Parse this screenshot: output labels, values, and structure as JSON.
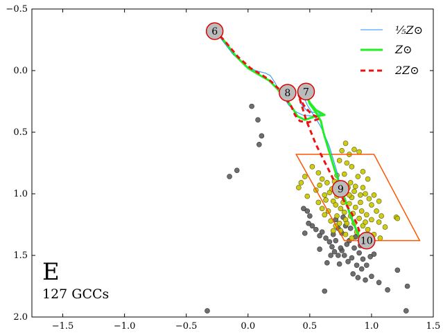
{
  "chart_data": {
    "type": "scatter",
    "panel_label": "E",
    "count_label": "127 GCCs",
    "xlim": [
      -1.75,
      1.5
    ],
    "ylim": [
      2.0,
      -0.5
    ],
    "x_ticks": [
      -1.5,
      -1.0,
      -0.5,
      0.0,
      0.5,
      1.0,
      1.5
    ],
    "y_ticks": [
      -0.5,
      0.0,
      0.5,
      1.0,
      1.5,
      2.0
    ],
    "x_tick_labels": [
      "−1.5",
      "−1.0",
      "−0.5",
      "0.0",
      "0.5",
      "1.0",
      "1.5"
    ],
    "y_tick_labels": [
      "−0.5",
      "0.0",
      "0.5",
      "1.0",
      "1.5",
      "2.0"
    ],
    "colors": {
      "track_low": "#1e90ff",
      "track_solar": "#22ee22",
      "track_high": "#ee1111",
      "box": "#ff5500",
      "gray_points": "#555555",
      "yellow_points": "#c8c800",
      "marker_fill": "#bbbbbb",
      "marker_edge": "#dd0000"
    },
    "legend": {
      "position": "top-right",
      "entries": [
        {
          "label": "⅕Z⊙",
          "style": "thin-blue"
        },
        {
          "label": "Z⊙",
          "style": "thick-green"
        },
        {
          "label": "2Z⊙",
          "style": "dashed-red"
        }
      ]
    },
    "series": [
      {
        "name": "1/5 Zsun",
        "points": [
          [
            -0.27,
            -0.33
          ],
          [
            -0.22,
            -0.26
          ],
          [
            -0.12,
            -0.13
          ],
          [
            -0.02,
            -0.04
          ],
          [
            0.06,
            0.0
          ],
          [
            0.14,
            0.02
          ],
          [
            0.18,
            0.04
          ],
          [
            0.22,
            0.1
          ],
          [
            0.25,
            0.16
          ],
          [
            0.29,
            0.22
          ],
          [
            0.33,
            0.28
          ],
          [
            0.38,
            0.33
          ],
          [
            0.44,
            0.36
          ],
          [
            0.52,
            0.37
          ],
          [
            0.6,
            0.35
          ],
          [
            0.48,
            0.33
          ],
          [
            0.42,
            0.26
          ],
          [
            0.44,
            0.19
          ],
          [
            0.48,
            0.28
          ],
          [
            0.53,
            0.36
          ],
          [
            0.58,
            0.44
          ],
          [
            0.62,
            0.52
          ],
          [
            0.66,
            0.62
          ],
          [
            0.69,
            0.72
          ],
          [
            0.72,
            0.82
          ],
          [
            0.74,
            0.9
          ],
          [
            0.76,
            0.97
          ],
          [
            0.79,
            1.05
          ],
          [
            0.82,
            1.13
          ],
          [
            0.85,
            1.21
          ],
          [
            0.88,
            1.29
          ],
          [
            0.91,
            1.37
          ],
          [
            0.95,
            1.44
          ]
        ]
      },
      {
        "name": "Zsun",
        "points": [
          [
            -0.27,
            -0.33
          ],
          [
            -0.2,
            -0.25
          ],
          [
            -0.1,
            -0.12
          ],
          [
            0.0,
            -0.02
          ],
          [
            0.1,
            0.04
          ],
          [
            0.17,
            0.08
          ],
          [
            0.23,
            0.14
          ],
          [
            0.28,
            0.2
          ],
          [
            0.33,
            0.26
          ],
          [
            0.37,
            0.32
          ],
          [
            0.4,
            0.37
          ],
          [
            0.46,
            0.4
          ],
          [
            0.55,
            0.37
          ],
          [
            0.62,
            0.36
          ],
          [
            0.55,
            0.32
          ],
          [
            0.5,
            0.26
          ],
          [
            0.47,
            0.19
          ],
          [
            0.5,
            0.27
          ],
          [
            0.55,
            0.34
          ],
          [
            0.59,
            0.41
          ],
          [
            0.61,
            0.5
          ],
          [
            0.64,
            0.6
          ],
          [
            0.67,
            0.7
          ],
          [
            0.7,
            0.8
          ],
          [
            0.73,
            0.89
          ],
          [
            0.76,
            0.97
          ],
          [
            0.79,
            1.06
          ],
          [
            0.82,
            1.15
          ],
          [
            0.85,
            1.23
          ],
          [
            0.88,
            1.3
          ],
          [
            0.91,
            1.37
          ],
          [
            0.95,
            1.44
          ]
        ]
      },
      {
        "name": "2 Zsun",
        "points": [
          [
            -0.27,
            -0.33
          ],
          [
            -0.18,
            -0.23
          ],
          [
            -0.08,
            -0.11
          ],
          [
            0.02,
            -0.02
          ],
          [
            0.12,
            0.04
          ],
          [
            0.19,
            0.09
          ],
          [
            0.26,
            0.16
          ],
          [
            0.31,
            0.23
          ],
          [
            0.35,
            0.29
          ],
          [
            0.38,
            0.36
          ],
          [
            0.42,
            0.41
          ],
          [
            0.49,
            0.42
          ],
          [
            0.58,
            0.39
          ],
          [
            0.51,
            0.35
          ],
          [
            0.45,
            0.28
          ],
          [
            0.41,
            0.2
          ],
          [
            0.44,
            0.3
          ],
          [
            0.47,
            0.4
          ],
          [
            0.51,
            0.5
          ],
          [
            0.55,
            0.6
          ],
          [
            0.6,
            0.7
          ],
          [
            0.65,
            0.8
          ],
          [
            0.7,
            0.9
          ],
          [
            0.74,
            0.99
          ],
          [
            0.79,
            1.08
          ],
          [
            0.84,
            1.16
          ],
          [
            0.88,
            1.24
          ],
          [
            0.9,
            1.3
          ],
          [
            0.91,
            1.36
          ],
          [
            0.92,
            1.38
          ]
        ]
      }
    ],
    "box_polygon": [
      [
        0.39,
        0.68
      ],
      [
        1.02,
        0.68
      ],
      [
        1.39,
        1.38
      ],
      [
        0.78,
        1.38
      ]
    ],
    "age_markers": [
      {
        "label": "6",
        "x": -0.27,
        "y": -0.32
      },
      {
        "label": "8",
        "x": 0.32,
        "y": 0.18
      },
      {
        "label": "7",
        "x": 0.47,
        "y": 0.17
      },
      {
        "label": "9",
        "x": 0.75,
        "y": 0.96
      },
      {
        "label": "10",
        "x": 0.96,
        "y": 1.38
      }
    ],
    "gray_points": [
      [
        0.03,
        0.29
      ],
      [
        0.08,
        0.4
      ],
      [
        0.11,
        0.53
      ],
      [
        0.09,
        0.6
      ],
      [
        -0.09,
        0.81
      ],
      [
        -0.15,
        0.86
      ],
      [
        -0.33,
        1.95
      ],
      [
        0.45,
        1.12
      ],
      [
        0.48,
        1.14
      ],
      [
        0.5,
        1.18
      ],
      [
        0.52,
        1.26
      ],
      [
        0.55,
        1.29
      ],
      [
        0.49,
        1.24
      ],
      [
        0.46,
        1.32
      ],
      [
        0.58,
        1.34
      ],
      [
        0.6,
        1.31
      ],
      [
        0.63,
        1.36
      ],
      [
        0.66,
        1.39
      ],
      [
        0.68,
        1.43
      ],
      [
        0.7,
        1.47
      ],
      [
        0.73,
        1.5
      ],
      [
        0.76,
        1.46
      ],
      [
        0.78,
        1.5
      ],
      [
        0.81,
        1.55
      ],
      [
        0.84,
        1.52
      ],
      [
        0.88,
        1.58
      ],
      [
        0.92,
        1.61
      ],
      [
        0.85,
        1.65
      ],
      [
        0.89,
        1.68
      ],
      [
        0.95,
        1.7
      ],
      [
        1.0,
        1.67
      ],
      [
        1.06,
        1.72
      ],
      [
        1.13,
        1.78
      ],
      [
        1.21,
        1.62
      ],
      [
        1.29,
        1.75
      ],
      [
        1.28,
        1.95
      ],
      [
        0.62,
        1.79
      ],
      [
        0.74,
        1.57
      ],
      [
        0.71,
        1.38
      ],
      [
        0.69,
        1.33
      ],
      [
        0.8,
        1.41
      ],
      [
        0.86,
        1.44
      ],
      [
        0.9,
        1.48
      ],
      [
        0.93,
        1.53
      ],
      [
        0.96,
        1.58
      ],
      [
        0.99,
        1.51
      ],
      [
        1.02,
        1.49
      ],
      [
        0.58,
        1.45
      ],
      [
        0.64,
        1.56
      ],
      [
        0.67,
        1.5
      ],
      [
        0.75,
        1.44
      ],
      [
        0.82,
        1.38
      ],
      [
        0.87,
        1.35
      ],
      [
        0.91,
        1.42
      ],
      [
        0.76,
        1.32
      ],
      [
        0.79,
        1.26
      ],
      [
        0.83,
        1.28
      ],
      [
        0.73,
        1.28
      ],
      [
        0.71,
        1.21
      ],
      [
        0.77,
        1.19
      ]
    ],
    "yellow_points": [
      [
        0.79,
        0.59
      ],
      [
        0.82,
        0.68
      ],
      [
        0.86,
        0.64
      ],
      [
        0.9,
        0.66
      ],
      [
        0.76,
        0.65
      ],
      [
        0.74,
        0.73
      ],
      [
        0.8,
        0.75
      ],
      [
        0.84,
        0.78
      ],
      [
        0.93,
        0.82
      ],
      [
        0.89,
        0.86
      ],
      [
        0.97,
        0.88
      ],
      [
        0.83,
        0.91
      ],
      [
        0.81,
        0.95
      ],
      [
        0.86,
        0.98
      ],
      [
        0.91,
        1.01
      ],
      [
        0.95,
        1.0
      ],
      [
        0.98,
        1.04
      ],
      [
        1.02,
        1.01
      ],
      [
        1.06,
        1.06
      ],
      [
        0.72,
        1.02
      ],
      [
        0.69,
        1.06
      ],
      [
        0.66,
        0.99
      ],
      [
        0.62,
        1.01
      ],
      [
        0.58,
        0.93
      ],
      [
        0.55,
        0.97
      ],
      [
        0.48,
        1.02
      ],
      [
        0.41,
        0.95
      ],
      [
        0.43,
        0.91
      ],
      [
        0.46,
        0.86
      ],
      [
        0.52,
        0.78
      ],
      [
        0.57,
        0.83
      ],
      [
        0.6,
        0.88
      ],
      [
        0.64,
        0.91
      ],
      [
        0.68,
        0.96
      ],
      [
        0.71,
        1.09
      ],
      [
        0.75,
        1.12
      ],
      [
        0.78,
        1.15
      ],
      [
        0.82,
        1.08
      ],
      [
        0.87,
        1.11
      ],
      [
        0.92,
        1.14
      ],
      [
        0.96,
        1.17
      ],
      [
        1.0,
        1.21
      ],
      [
        1.04,
        1.14
      ],
      [
        1.08,
        1.18
      ],
      [
        0.65,
        1.14
      ],
      [
        0.62,
        1.17
      ],
      [
        0.67,
        1.22
      ],
      [
        0.71,
        1.26
      ],
      [
        0.75,
        1.3
      ],
      [
        0.79,
        1.33
      ],
      [
        0.84,
        1.36
      ],
      [
        0.88,
        1.31
      ],
      [
        0.93,
        1.26
      ],
      [
        0.97,
        1.29
      ],
      [
        1.02,
        1.33
      ],
      [
        1.07,
        1.36
      ],
      [
        1.11,
        1.27
      ],
      [
        1.06,
        1.23
      ],
      [
        0.69,
        1.3
      ],
      [
        0.74,
        1.24
      ],
      [
        0.79,
        1.21
      ],
      [
        0.83,
        1.18
      ],
      [
        0.86,
        1.24
      ],
      [
        0.9,
        1.2
      ],
      [
        1.2,
        1.19
      ],
      [
        1.21,
        1.2
      ],
      [
        0.72,
        1.18
      ],
      [
        0.77,
        1.07
      ],
      [
        0.84,
        1.03
      ],
      [
        0.87,
        0.94
      ],
      [
        0.93,
        0.95
      ],
      [
        0.78,
        0.84
      ],
      [
        0.72,
        0.85
      ],
      [
        0.7,
        0.9
      ],
      [
        0.82,
        1.01
      ],
      [
        0.91,
        1.07
      ],
      [
        1.0,
        1.09
      ],
      [
        0.63,
        1.05
      ],
      [
        0.57,
        1.07
      ],
      [
        0.6,
        1.12
      ],
      [
        0.8,
        1.24
      ],
      [
        0.85,
        1.16
      ],
      [
        0.95,
        1.23
      ],
      [
        0.99,
        1.35
      ]
    ]
  }
}
